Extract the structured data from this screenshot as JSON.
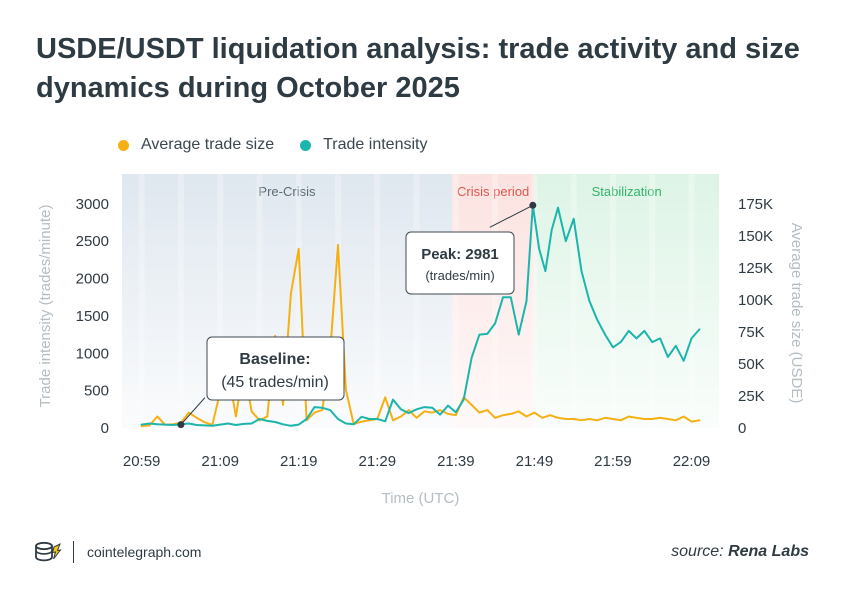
{
  "title": "USDE/USDT liquidation analysis: trade activity and size dynamics during October 2025",
  "footer": {
    "site": "cointelegraph.com",
    "source_prefix": "source:",
    "source_name": "Rena Labs"
  },
  "colors": {
    "avg_trade_size": "#f5b014",
    "trade_intensity": "#1cb5ac",
    "pre_crisis_band": "#dfe7ef",
    "crisis_band": "#fbe2e0",
    "stabilization_band": "#ddf4e6"
  },
  "chart_data": {
    "type": "line",
    "title": "USDE/USDT liquidation analysis: trade activity and size dynamics during October 2025",
    "xlabel": "Time (UTC)",
    "ylabel_left": "Trade intensity (trades/minute)",
    "ylabel_right": "Average trade size (USDE)",
    "x_ticks": [
      "20:59",
      "21:09",
      "21:19",
      "21:29",
      "21:39",
      "21:49",
      "21:59",
      "22:09"
    ],
    "y_left_ticks": [
      "0",
      "500",
      "1000",
      "1500",
      "2000",
      "2500",
      "3000"
    ],
    "y_right_ticks": [
      "0",
      "25K",
      "50K",
      "75K",
      "100K",
      "125K",
      "150K",
      "175K"
    ],
    "ylim_left": [
      0,
      3400
    ],
    "ylim_right": [
      0,
      198333
    ],
    "xlim_minutes_after_2059": [
      -2.5,
      73.5
    ],
    "legend_position": "top-left",
    "phases": [
      {
        "label": "Pre-Crisis",
        "start": -2.5,
        "end": 39.5
      },
      {
        "label": "Crisis period",
        "start": 39.5,
        "end": 50
      },
      {
        "label": "Stabilization",
        "start": 50,
        "end": 73.5
      }
    ],
    "series": [
      {
        "name": "Average trade size",
        "axis": "right",
        "x": [
          0,
          1,
          2,
          3,
          4,
          5,
          6,
          7,
          8,
          9,
          10,
          11,
          12,
          13,
          14,
          15,
          16,
          17,
          18,
          19,
          20,
          21,
          22,
          23,
          24,
          25,
          26,
          27,
          28,
          29,
          30,
          31,
          32,
          33,
          34,
          35,
          36,
          37,
          38,
          39,
          40,
          41,
          42,
          43,
          44,
          45,
          46,
          47,
          48,
          49,
          50,
          51,
          52,
          53,
          54,
          55,
          56,
          57,
          58,
          59,
          60,
          61,
          62,
          63,
          64,
          65,
          66,
          67,
          68,
          69,
          70,
          71
        ],
        "values": [
          1500,
          2000,
          9000,
          2500,
          3000,
          4000,
          12000,
          8000,
          4500,
          2500,
          28000,
          45000,
          9000,
          48000,
          13000,
          6000,
          9000,
          72000,
          18000,
          105000,
          140000,
          6000,
          12000,
          14000,
          60000,
          143000,
          30000,
          3000,
          5000,
          6000,
          7000,
          24000,
          6000,
          9000,
          14000,
          8000,
          13000,
          12000,
          14000,
          11000,
          10000,
          24000,
          18000,
          12000,
          14000,
          8000,
          10000,
          11000,
          13000,
          9000,
          12000,
          8000,
          10000,
          8000,
          7000,
          7000,
          6000,
          7000,
          6000,
          8000,
          7000,
          6000,
          9000,
          8000,
          7000,
          7000,
          8000,
          7000,
          6000,
          9000,
          5000,
          6000
        ]
      },
      {
        "name": "Trade intensity",
        "axis": "left",
        "x": [
          0,
          1,
          2,
          3,
          4,
          5,
          6,
          7,
          8,
          9,
          10,
          11,
          12,
          13,
          14,
          15,
          16,
          17,
          18,
          19,
          20,
          21,
          22,
          23,
          24,
          25,
          26,
          27,
          28,
          29,
          30,
          31,
          32,
          33,
          34,
          35,
          36,
          37,
          38,
          39,
          40,
          41,
          42,
          43,
          44,
          45,
          46,
          47,
          48,
          49,
          49.8,
          50.6,
          51.4,
          52.2,
          53,
          54,
          55,
          56,
          57,
          58,
          59,
          60,
          61,
          62,
          63,
          64,
          65,
          66,
          67,
          68,
          69,
          70,
          71
        ],
        "values": [
          45,
          60,
          50,
          45,
          40,
          50,
          60,
          40,
          35,
          30,
          45,
          60,
          40,
          55,
          60,
          120,
          95,
          80,
          50,
          30,
          45,
          120,
          280,
          270,
          240,
          120,
          60,
          50,
          150,
          120,
          120,
          90,
          380,
          250,
          200,
          250,
          280,
          270,
          180,
          300,
          210,
          380,
          940,
          1250,
          1260,
          1400,
          1750,
          1750,
          1250,
          1700,
          2981,
          2400,
          2100,
          2650,
          2950,
          2500,
          2800,
          2100,
          1700,
          1450,
          1250,
          1080,
          1150,
          1300,
          1200,
          1300,
          1150,
          1200,
          950,
          1100,
          900,
          1200,
          1320
        ]
      }
    ],
    "annotations": [
      {
        "label": "Baseline:",
        "sublabel": "(45 trades/min)",
        "x": 5,
        "y": 45
      },
      {
        "label": "Peak: 2981",
        "sublabel": "(trades/min)",
        "x": 49.8,
        "y": 2981
      }
    ]
  }
}
